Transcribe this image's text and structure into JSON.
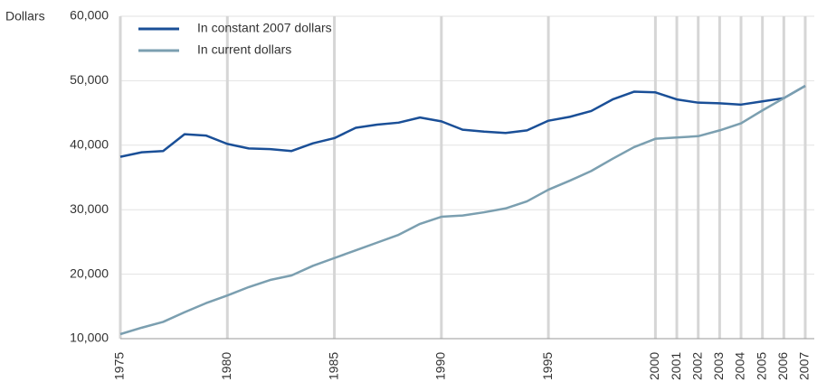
{
  "chart_data": {
    "type": "line",
    "y_label": "Dollars",
    "x": [
      1975,
      1976,
      1977,
      1978,
      1979,
      1980,
      1981,
      1982,
      1983,
      1984,
      1985,
      1986,
      1987,
      1988,
      1989,
      1990,
      1991,
      1992,
      1993,
      1994,
      1995,
      1996,
      1997,
      1998,
      1999,
      2000,
      2001,
      2002,
      2003,
      2004,
      2005,
      2006,
      2007
    ],
    "series": [
      {
        "name": "In constant 2007 dollars",
        "color": "#1a4f97",
        "values": [
          38200,
          38900,
          39100,
          41700,
          41500,
          40200,
          39500,
          39400,
          39100,
          40300,
          41100,
          42700,
          43200,
          43500,
          44300,
          43700,
          42400,
          42100,
          41900,
          42300,
          43800,
          44400,
          45300,
          47100,
          48300,
          48200,
          47100,
          46600,
          46500,
          46300,
          46800,
          47300,
          49200
        ]
      },
      {
        "name": "In current dollars",
        "color": "#7b9fb0",
        "values": [
          10700,
          11700,
          12600,
          14100,
          15500,
          16700,
          18000,
          19100,
          19800,
          21300,
          22500,
          23700,
          24900,
          26100,
          27800,
          28900,
          29100,
          29600,
          30200,
          31300,
          33100,
          34500,
          36000,
          37900,
          39700,
          41000,
          41200,
          41400,
          42300,
          43400,
          45400,
          47300,
          49200
        ]
      }
    ],
    "xlim": [
      1975,
      2007
    ],
    "xticks": [
      1975,
      1980,
      1985,
      1990,
      1995,
      2000,
      2001,
      2002,
      2003,
      2004,
      2005,
      2006,
      2007
    ],
    "ylim": [
      10000,
      60000
    ],
    "yticks": [
      {
        "value": 10000,
        "label": "10,000"
      },
      {
        "value": 20000,
        "label": "20,000"
      },
      {
        "value": 30000,
        "label": "30,000"
      },
      {
        "value": 40000,
        "label": "40,000"
      },
      {
        "value": 50000,
        "label": "50,000"
      },
      {
        "value": 60000,
        "label": "60,000"
      }
    ],
    "grid": true,
    "legend": "upper left"
  }
}
